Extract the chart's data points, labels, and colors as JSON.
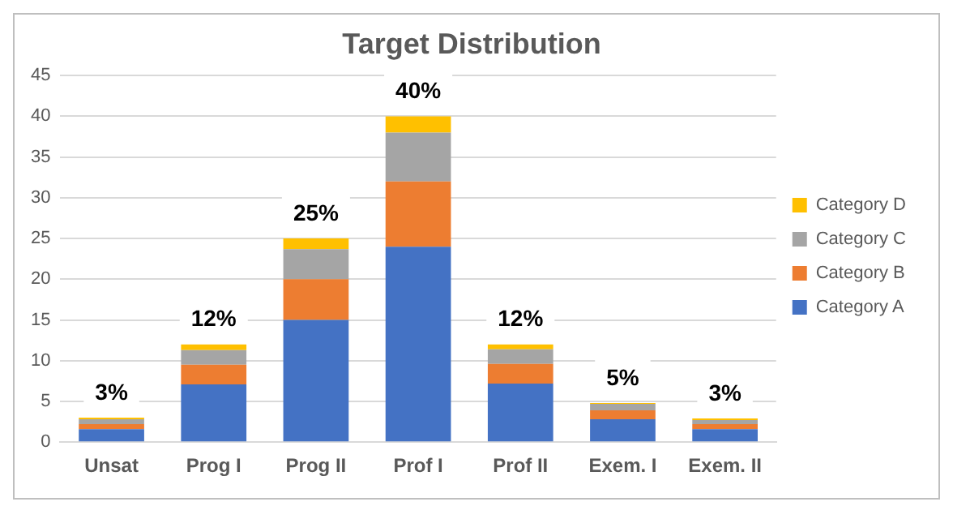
{
  "chart_data": {
    "type": "bar",
    "title": "Target Distribution",
    "stacked": true,
    "categories": [
      "Unsat",
      "Prog I",
      "Prog II",
      "Prof I",
      "Prof II",
      "Exem. I",
      "Exem. II"
    ],
    "series": [
      {
        "name": "Category A",
        "color": "#4472c4",
        "values": [
          1.6,
          7.1,
          15,
          24,
          7.2,
          2.8,
          1.6
        ]
      },
      {
        "name": "Category B",
        "color": "#ed7d31",
        "values": [
          0.6,
          2.4,
          5,
          8,
          2.4,
          1.1,
          0.6
        ]
      },
      {
        "name": "Category C",
        "color": "#a5a5a5",
        "values": [
          0.6,
          1.8,
          3.7,
          6,
          1.8,
          0.8,
          0.5
        ]
      },
      {
        "name": "Category D",
        "color": "#ffc000",
        "values": [
          0.2,
          0.7,
          1.3,
          2,
          0.6,
          0.1,
          0.2
        ]
      }
    ],
    "totals": [
      "3%",
      "12%",
      "25%",
      "40%",
      "12%",
      "5%",
      "3%"
    ],
    "ylim": [
      0,
      45
    ],
    "yticks": [
      0,
      5,
      10,
      15,
      20,
      25,
      30,
      35,
      40,
      45
    ],
    "grid": "y",
    "legend": "right"
  }
}
